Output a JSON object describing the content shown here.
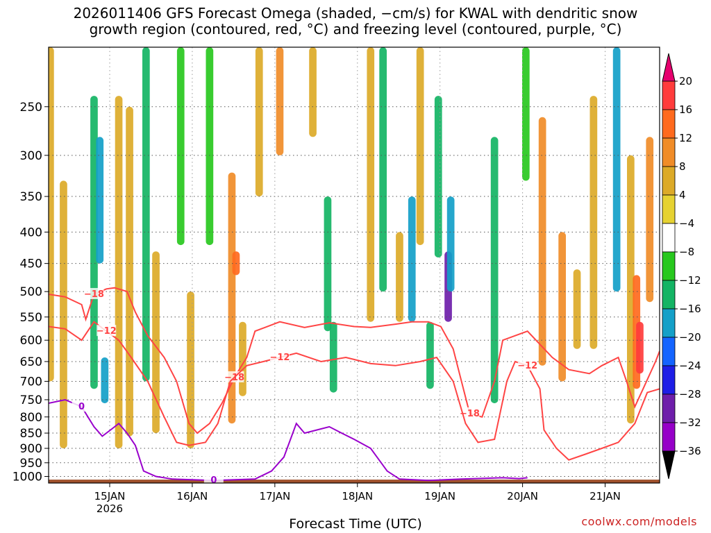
{
  "title": {
    "line1": "2026011406 GFS Forecast Omega (shaded, −cm/s) for KWAL with dendritic snow",
    "line2": "growth region (contoured, red, °C) and freezing level (contoured, purple, °C)"
  },
  "credit": "coolwx.com/models",
  "colors": {
    "dendritic_contour": "#ff4444",
    "freezing_contour": "#9900cc",
    "terrain": "#a0522d",
    "grid": "#888888"
  },
  "chart_data": {
    "type": "heatmap",
    "xlabel": "Forecast Time (UTC)",
    "ylabel": "",
    "x_ticks": [
      {
        "label": "15JAN",
        "sub": "2026",
        "t": 0.74
      },
      {
        "label": "16JAN",
        "sub": "",
        "t": 1.74
      },
      {
        "label": "17JAN",
        "sub": "",
        "t": 2.74
      },
      {
        "label": "18JAN",
        "sub": "",
        "t": 3.74
      },
      {
        "label": "19JAN",
        "sub": "",
        "t": 4.74
      },
      {
        "label": "20JAN",
        "sub": "",
        "t": 5.74
      },
      {
        "label": "21JAN",
        "sub": "",
        "t": 6.74
      }
    ],
    "x_range_days": [
      0,
      7.4
    ],
    "y_ticks": [
      250,
      300,
      350,
      400,
      450,
      500,
      550,
      600,
      650,
      700,
      750,
      800,
      850,
      900,
      950,
      1000
    ],
    "y_range_hpa": [
      200,
      1025
    ],
    "y_scale": "log-pressure",
    "grid": true,
    "colorbar": {
      "labels": [
        "20",
        "16",
        "12",
        "8",
        "4",
        "−4",
        "−8",
        "−12",
        "−16",
        "−20",
        "−24",
        "−28",
        "−32",
        "−36"
      ],
      "colors": [
        "#ff3c3c",
        "#ff6a1e",
        "#f08c28",
        "#dcaa28",
        "#e6d232",
        "#ffffff",
        "#28c81e",
        "#14b464",
        "#14a0c8",
        "#1464ff",
        "#1e1ee6",
        "#6e1eaa",
        "#9600c8",
        "#a0a0a0"
      ],
      "top_arrow_color": "#e6006e",
      "bottom_arrow_color": "#000000"
    },
    "shading_cells": [
      {
        "t": 0.02,
        "p0": 200,
        "p1": 700,
        "v": 6
      },
      {
        "t": 0.18,
        "p0": 330,
        "p1": 900,
        "v": 5
      },
      {
        "t": 0.55,
        "p0": 240,
        "p1": 720,
        "v": -10
      },
      {
        "t": 0.62,
        "p0": 280,
        "p1": 450,
        "v": -14
      },
      {
        "t": 0.68,
        "p0": 640,
        "p1": 760,
        "v": -12
      },
      {
        "t": 0.85,
        "p0": 240,
        "p1": 900,
        "v": 6
      },
      {
        "t": 0.98,
        "p0": 250,
        "p1": 860,
        "v": 5
      },
      {
        "t": 1.18,
        "p0": 200,
        "p1": 700,
        "v": -8
      },
      {
        "t": 1.3,
        "p0": 430,
        "p1": 850,
        "v": 7
      },
      {
        "t": 1.6,
        "p0": 200,
        "p1": 420,
        "v": -7
      },
      {
        "t": 1.72,
        "p0": 500,
        "p1": 900,
        "v": 6
      },
      {
        "t": 1.95,
        "p0": 200,
        "p1": 420,
        "v": -7
      },
      {
        "t": 2.22,
        "p0": 320,
        "p1": 820,
        "v": 9
      },
      {
        "t": 2.27,
        "p0": 430,
        "p1": 470,
        "v": 13
      },
      {
        "t": 2.35,
        "p0": 560,
        "p1": 740,
        "v": 6
      },
      {
        "t": 2.55,
        "p0": 200,
        "p1": 350,
        "v": 5
      },
      {
        "t": 2.8,
        "p0": 200,
        "p1": 300,
        "v": 8
      },
      {
        "t": 3.2,
        "p0": 200,
        "p1": 280,
        "v": 7
      },
      {
        "t": 3.38,
        "p0": 350,
        "p1": 580,
        "v": -8
      },
      {
        "t": 3.45,
        "p0": 560,
        "p1": 730,
        "v": -8
      },
      {
        "t": 3.9,
        "p0": 200,
        "p1": 560,
        "v": 6
      },
      {
        "t": 4.05,
        "p0": 200,
        "p1": 500,
        "v": -9
      },
      {
        "t": 4.25,
        "p0": 400,
        "p1": 560,
        "v": 6
      },
      {
        "t": 4.4,
        "p0": 350,
        "p1": 560,
        "v": -14
      },
      {
        "t": 4.5,
        "p0": 200,
        "p1": 420,
        "v": 6
      },
      {
        "t": 4.62,
        "p0": 560,
        "p1": 720,
        "v": -10
      },
      {
        "t": 4.72,
        "p0": 240,
        "p1": 440,
        "v": -10
      },
      {
        "t": 4.84,
        "p0": 430,
        "p1": 560,
        "v": -26
      },
      {
        "t": 4.87,
        "p0": 350,
        "p1": 500,
        "v": -13
      },
      {
        "t": 5.4,
        "p0": 280,
        "p1": 760,
        "v": -8
      },
      {
        "t": 5.78,
        "p0": 200,
        "p1": 330,
        "v": -7
      },
      {
        "t": 5.98,
        "p0": 260,
        "p1": 660,
        "v": 10
      },
      {
        "t": 6.22,
        "p0": 400,
        "p1": 700,
        "v": 8
      },
      {
        "t": 6.4,
        "p0": 460,
        "p1": 620,
        "v": 5
      },
      {
        "t": 6.6,
        "p0": 240,
        "p1": 620,
        "v": 6
      },
      {
        "t": 6.88,
        "p0": 200,
        "p1": 500,
        "v": -12
      },
      {
        "t": 7.05,
        "p0": 300,
        "p1": 820,
        "v": 7
      },
      {
        "t": 7.12,
        "p0": 470,
        "p1": 720,
        "v": 13
      },
      {
        "t": 7.16,
        "p0": 560,
        "p1": 680,
        "v": 18
      },
      {
        "t": 7.28,
        "p0": 280,
        "p1": 520,
        "v": 10
      }
    ],
    "series": [
      {
        "name": "-18",
        "label": "−18",
        "color": "#ff4444",
        "points": [
          [
            0.0,
            505
          ],
          [
            0.2,
            510
          ],
          [
            0.4,
            525
          ],
          [
            0.45,
            555
          ],
          [
            0.55,
            505
          ],
          [
            0.7,
            495
          ],
          [
            0.8,
            493
          ],
          [
            0.95,
            500
          ],
          [
            1.05,
            540
          ],
          [
            1.2,
            590
          ],
          [
            1.4,
            640
          ],
          [
            1.55,
            700
          ],
          [
            1.7,
            820
          ],
          [
            1.8,
            850
          ],
          [
            1.95,
            820
          ],
          [
            2.1,
            760
          ],
          [
            2.25,
            690
          ],
          [
            2.4,
            640
          ],
          [
            2.5,
            580
          ],
          [
            2.8,
            560
          ],
          [
            3.1,
            572
          ],
          [
            3.4,
            562
          ],
          [
            3.7,
            570
          ],
          [
            3.9,
            572
          ],
          [
            4.2,
            565
          ],
          [
            4.4,
            560
          ],
          [
            4.6,
            560
          ],
          [
            4.75,
            570
          ],
          [
            4.9,
            620
          ],
          [
            5.0,
            700
          ],
          [
            5.1,
            790
          ],
          [
            5.25,
            800
          ],
          [
            5.4,
            700
          ],
          [
            5.5,
            600
          ],
          [
            5.8,
            580
          ],
          [
            6.1,
            640
          ],
          [
            6.3,
            670
          ],
          [
            6.55,
            680
          ],
          [
            6.7,
            660
          ],
          [
            6.9,
            640
          ],
          [
            7.0,
            700
          ],
          [
            7.1,
            770
          ],
          [
            7.2,
            720
          ],
          [
            7.35,
            650
          ],
          [
            7.4,
            625
          ]
        ]
      },
      {
        "name": "-12",
        "label": "−12",
        "color": "#ff4444",
        "points": [
          [
            0.0,
            570
          ],
          [
            0.2,
            575
          ],
          [
            0.4,
            600
          ],
          [
            0.55,
            560
          ],
          [
            0.7,
            580
          ],
          [
            0.85,
            600
          ],
          [
            1.0,
            640
          ],
          [
            1.2,
            700
          ],
          [
            1.4,
            800
          ],
          [
            1.55,
            880
          ],
          [
            1.7,
            890
          ],
          [
            1.9,
            880
          ],
          [
            2.05,
            820
          ],
          [
            2.2,
            700
          ],
          [
            2.4,
            660
          ],
          [
            2.6,
            650
          ],
          [
            2.8,
            640
          ],
          [
            3.0,
            630
          ],
          [
            3.3,
            650
          ],
          [
            3.6,
            640
          ],
          [
            3.9,
            655
          ],
          [
            4.2,
            660
          ],
          [
            4.5,
            650
          ],
          [
            4.7,
            640
          ],
          [
            4.9,
            700
          ],
          [
            5.05,
            820
          ],
          [
            5.2,
            880
          ],
          [
            5.4,
            870
          ],
          [
            5.55,
            700
          ],
          [
            5.65,
            650
          ],
          [
            5.8,
            660
          ],
          [
            5.95,
            720
          ],
          [
            6.0,
            840
          ],
          [
            6.15,
            900
          ],
          [
            6.3,
            940
          ],
          [
            6.5,
            920
          ],
          [
            6.7,
            900
          ],
          [
            6.9,
            880
          ],
          [
            7.1,
            820
          ],
          [
            7.25,
            730
          ],
          [
            7.4,
            720
          ]
        ]
      },
      {
        "name": "0",
        "label": "0",
        "color": "#9900cc",
        "points": [
          [
            0.0,
            760
          ],
          [
            0.2,
            750
          ],
          [
            0.4,
            770
          ],
          [
            0.55,
            830
          ],
          [
            0.65,
            860
          ],
          [
            0.75,
            840
          ],
          [
            0.85,
            820
          ],
          [
            0.95,
            850
          ],
          [
            1.05,
            890
          ],
          [
            1.15,
            980
          ],
          [
            1.3,
            1000
          ],
          [
            1.5,
            1010
          ],
          [
            2.0,
            1015
          ],
          [
            2.5,
            1010
          ],
          [
            2.7,
            980
          ],
          [
            2.85,
            930
          ],
          [
            3.0,
            820
          ],
          [
            3.1,
            850
          ],
          [
            3.25,
            840
          ],
          [
            3.4,
            830
          ],
          [
            3.55,
            850
          ],
          [
            3.7,
            870
          ],
          [
            3.9,
            900
          ],
          [
            4.1,
            980
          ],
          [
            4.25,
            1010
          ],
          [
            4.6,
            1015
          ],
          [
            5.0,
            1010
          ],
          [
            5.5,
            1005
          ],
          [
            5.7,
            1008
          ],
          [
            5.8,
            1005
          ]
        ]
      }
    ]
  }
}
